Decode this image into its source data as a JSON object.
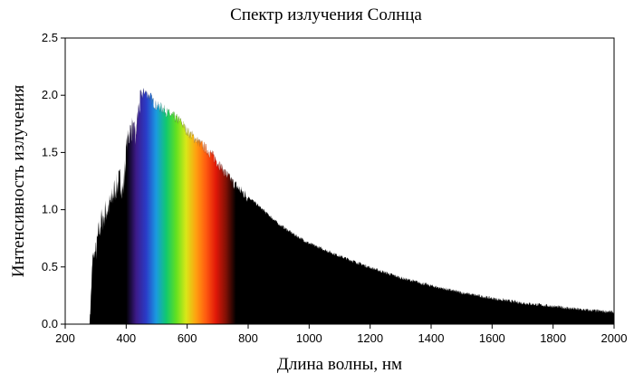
{
  "chart_data": {
    "type": "area",
    "title": "Спектр излучения Солнца",
    "xlabel": "Длина волны, нм",
    "ylabel": "Интенсивность излучения",
    "xlim": [
      200,
      2000
    ],
    "ylim": [
      0,
      2.5
    ],
    "x_ticks": [
      200,
      400,
      600,
      800,
      1000,
      1200,
      1400,
      1600,
      1800,
      2000
    ],
    "y_ticks": [
      "0.0",
      "0.5",
      "1.0",
      "1.5",
      "2.0",
      "2.5"
    ],
    "grid": false,
    "series": [
      {
        "fill_color": "#000000",
        "x": [
          280,
          290,
          300,
          310,
          320,
          330,
          340,
          350,
          360,
          370,
          380,
          390,
          400,
          410,
          420,
          430,
          440,
          450,
          460,
          470,
          480,
          490,
          500,
          520,
          540,
          560,
          580,
          600,
          620,
          640,
          660,
          680,
          700,
          720,
          750,
          800,
          850,
          900,
          950,
          1000,
          1100,
          1200,
          1300,
          1400,
          1500,
          1600,
          1700,
          1800,
          1900,
          2000
        ],
        "y": [
          0.0,
          0.6,
          0.65,
          0.85,
          0.95,
          1.0,
          1.05,
          1.1,
          1.2,
          1.25,
          1.3,
          1.2,
          1.55,
          1.7,
          1.75,
          1.65,
          1.9,
          2.0,
          2.05,
          2.02,
          2.0,
          1.95,
          1.92,
          1.9,
          1.85,
          1.82,
          1.78,
          1.7,
          1.65,
          1.6,
          1.55,
          1.5,
          1.43,
          1.35,
          1.25,
          1.12,
          1.0,
          0.88,
          0.79,
          0.71,
          0.6,
          0.5,
          0.41,
          0.34,
          0.28,
          0.23,
          0.19,
          0.16,
          0.13,
          0.11
        ]
      }
    ],
    "spectrum_band": {
      "x_range": [
        400,
        760
      ],
      "colors": [
        "#000000",
        "#3d1b8a",
        "#2a3cc8",
        "#1a9ae0",
        "#10c870",
        "#62e020",
        "#d8e818",
        "#ffa010",
        "#ff5a10",
        "#e01808",
        "#801006",
        "#000000"
      ]
    }
  }
}
